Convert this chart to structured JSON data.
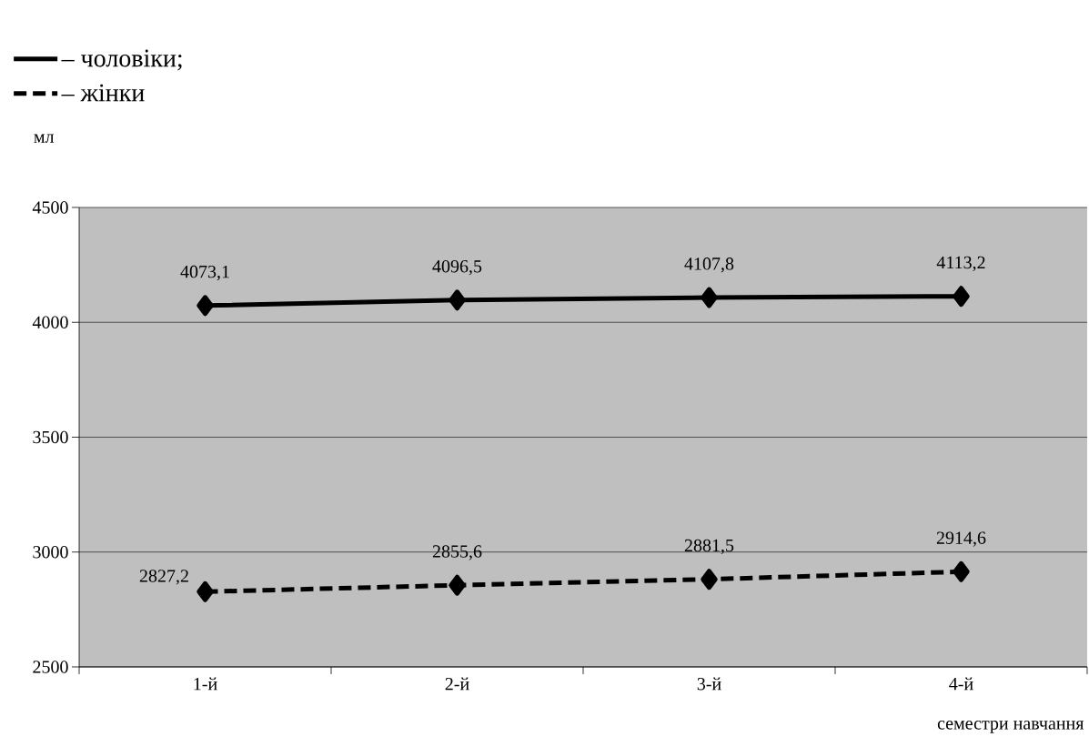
{
  "chart_data": {
    "type": "line",
    "ylabel": "мл",
    "xlabel": "семестри навчання",
    "categories": [
      "1-й",
      "2-й",
      "3-й",
      "4-й"
    ],
    "series": [
      {
        "name": "– чоловіки;",
        "color": "#000000",
        "line_style": "solid",
        "values": [
          4073.1,
          4096.5,
          4107.8,
          4113.2
        ],
        "value_labels": [
          "4073,1",
          "4096,5",
          "4107,8",
          "4113,2"
        ]
      },
      {
        "name": "– жінки",
        "color": "#000000",
        "line_style": "dashed",
        "values": [
          2827.2,
          2855.6,
          2881.5,
          2914.6
        ],
        "value_labels": [
          "2827,2",
          "2855,6",
          "2881,5",
          "2914,6"
        ]
      }
    ],
    "ylim": [
      2500,
      4500
    ],
    "yticks": [
      2500,
      3000,
      3500,
      4000,
      4500
    ],
    "grid": "y",
    "legend": "top left",
    "marker": "diamond"
  }
}
